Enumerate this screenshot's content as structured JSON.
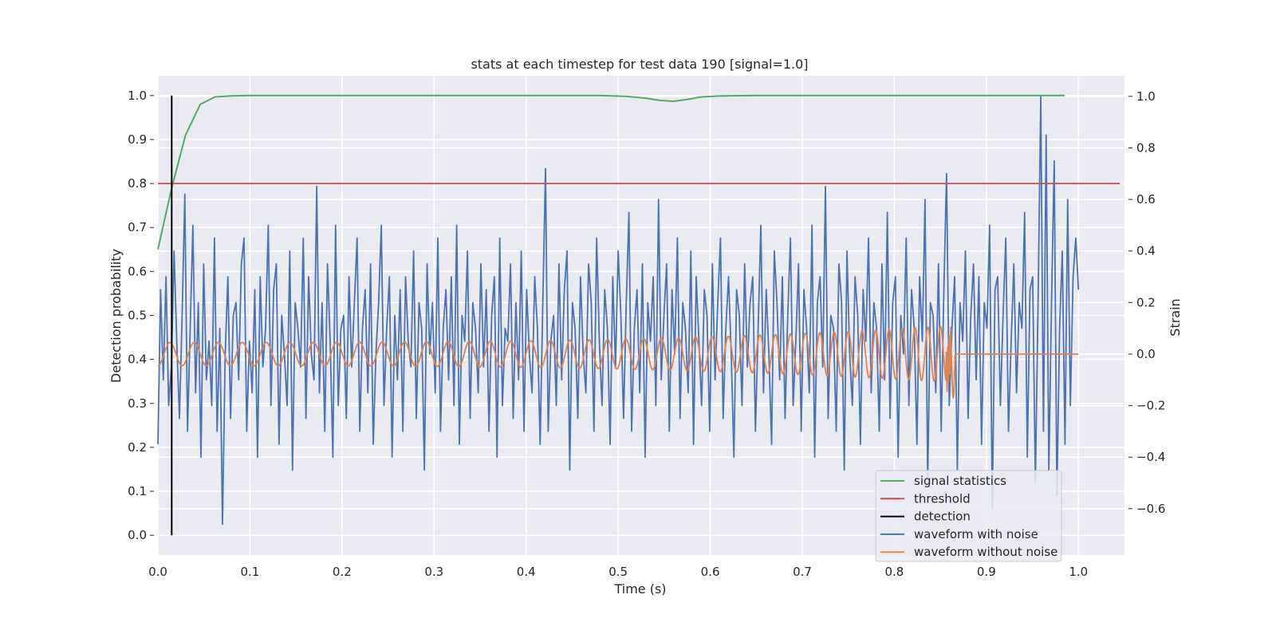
{
  "chart_data": {
    "type": "line",
    "title": "stats at each timestep for test data 190 [signal=1.0]",
    "xlabel": "Time (s)",
    "ylabel_left": "Detection probability",
    "ylabel_right": "Strain",
    "xlim": [
      0.0,
      1.05
    ],
    "ylim_left": [
      -0.045,
      1.045
    ],
    "ylim_right": [
      -0.78,
      1.08
    ],
    "x_ticks": [
      "0.0",
      "0.1",
      "0.2",
      "0.3",
      "0.4",
      "0.5",
      "0.6",
      "0.7",
      "0.8",
      "0.9",
      "1.0"
    ],
    "x_tick_values": [
      0.0,
      0.1,
      0.2,
      0.3,
      0.4,
      0.5,
      0.6,
      0.7,
      0.8,
      0.9,
      1.0
    ],
    "y_left_ticks": [
      "0.0",
      "0.1",
      "0.2",
      "0.3",
      "0.4",
      "0.5",
      "0.6",
      "0.7",
      "0.8",
      "0.9",
      "1.0"
    ],
    "y_left_tick_values": [
      0.0,
      0.1,
      0.2,
      0.3,
      0.4,
      0.5,
      0.6,
      0.7,
      0.8,
      0.9,
      1.0
    ],
    "y_right_ticks": [
      "−0.6",
      "−0.4",
      "−0.2",
      "0.0",
      "0.2",
      "0.4",
      "0.6",
      "0.8",
      "1.0"
    ],
    "y_right_tick_values": [
      -0.6,
      -0.4,
      -0.2,
      0.0,
      0.2,
      0.4,
      0.6,
      0.8,
      1.0
    ],
    "grid": true,
    "legend_position": "lower-right",
    "legend": [
      {
        "label": "signal statistics",
        "color": "#55a868"
      },
      {
        "label": "threshold",
        "color": "#c44e52"
      },
      {
        "label": "detection",
        "color": "#000000"
      },
      {
        "label": "waveform with noise",
        "color": "#4c72b0"
      },
      {
        "label": "waveform without noise",
        "color": "#dd8452"
      }
    ],
    "series": [
      {
        "name": "signal statistics",
        "axis": "left",
        "color": "#55a868",
        "x": [
          0.0,
          0.015,
          0.03,
          0.046,
          0.062,
          0.078,
          0.1,
          0.2,
          0.3,
          0.4,
          0.48,
          0.51,
          0.53,
          0.545,
          0.56,
          0.575,
          0.59,
          0.61,
          0.65,
          0.8,
          0.9,
          0.985
        ],
        "y": [
          0.65,
          0.79,
          0.91,
          0.98,
          0.997,
          0.999,
          1.0,
          1.0,
          1.0,
          1.0,
          1.0,
          0.998,
          0.994,
          0.989,
          0.987,
          0.991,
          0.997,
          0.999,
          1.0,
          1.0,
          1.0,
          1.0
        ]
      },
      {
        "name": "threshold",
        "axis": "left",
        "color": "#c44e52",
        "x": [
          0.0,
          1.045
        ],
        "y": [
          0.8,
          0.8
        ]
      },
      {
        "name": "detection",
        "axis": "left",
        "color": "#000000",
        "x": [
          0.015,
          0.015
        ],
        "y": [
          0.0,
          1.0
        ]
      },
      {
        "name": "waveform with noise",
        "axis": "right",
        "color": "#4c72b0",
        "x_start": 0.0,
        "x_end": 1.0,
        "values": [
          -0.35,
          0.25,
          -0.1,
          0.3,
          -0.2,
          -0.05,
          0.4,
          0.05,
          -0.25,
          0.15,
          0.62,
          -0.3,
          0.1,
          0.5,
          -0.15,
          0.2,
          -0.4,
          0.35,
          -0.1,
          0.05,
          -0.2,
          0.45,
          -0.3,
          0.1,
          -0.66,
          0.0,
          0.3,
          -0.25,
          0.15,
          0.2,
          -0.1,
          0.35,
          0.45,
          -0.3,
          0.05,
          -0.15,
          0.25,
          -0.4,
          0.3,
          -0.05,
          0.1,
          0.5,
          -0.2,
          0.25,
          0.35,
          -0.35,
          0.15,
          0.0,
          -0.2,
          0.4,
          -0.45,
          0.2,
          0.1,
          -0.05,
          0.45,
          -0.25,
          0.3,
          0.0,
          -0.1,
          0.65,
          -0.15,
          0.2,
          -0.3,
          0.35,
          0.05,
          -0.4,
          0.5,
          -0.2,
          0.1,
          0.15,
          -0.25,
          0.3,
          -0.05,
          0.2,
          0.45,
          -0.3,
          0.1,
          0.25,
          -0.15,
          0.35,
          -0.35,
          0.0,
          0.2,
          0.5,
          -0.2,
          0.1,
          0.3,
          -0.4,
          0.15,
          -0.1,
          0.25,
          -0.3,
          0.3,
          0.05,
          -0.05,
          0.4,
          -0.25,
          0.2,
          0.1,
          -0.45,
          0.35,
          0.0,
          0.2,
          -0.15,
          0.45,
          -0.3,
          0.1,
          0.25,
          -0.1,
          0.3,
          -0.2,
          0.5,
          -0.35,
          0.15,
          0.05,
          0.4,
          -0.25,
          0.2,
          0.1,
          -0.15,
          0.35,
          -0.05,
          0.25,
          -0.3,
          0.15,
          0.3,
          -0.4,
          0.45,
          -0.2,
          0.1,
          0.05,
          0.35,
          -0.25,
          0.2,
          -0.1,
          0.4,
          -0.3,
          0.25,
          0.0,
          -0.15,
          0.3,
          0.1,
          -0.35,
          0.2,
          0.72,
          -0.3,
          0.05,
          0.15,
          -0.2,
          0.35,
          -0.1,
          0.25,
          0.4,
          -0.45,
          0.2,
          0.1,
          -0.25,
          0.3,
          0.0,
          -0.15,
          0.35,
          0.2,
          -0.3,
          0.45,
          0.05,
          -0.2,
          0.25,
          0.1,
          -0.35,
          0.3,
          -0.05,
          0.4,
          0.15,
          -0.25,
          0.2,
          0.55,
          -0.3,
          0.1,
          0.25,
          -0.15,
          0.35,
          -0.4,
          0.2,
          0.05,
          0.3,
          -0.2,
          0.6,
          -0.1,
          0.15,
          0.35,
          -0.3,
          0.25,
          0.0,
          0.45,
          -0.25,
          0.2,
          0.1,
          -0.15,
          0.4,
          -0.35,
          0.3,
          0.05,
          -0.2,
          0.25,
          0.15,
          -0.3,
          0.35,
          -0.1,
          0.2,
          0.45,
          -0.25,
          0.1,
          0.3,
          0.0,
          -0.4,
          0.25,
          0.15,
          -0.2,
          0.35,
          -0.05,
          0.2,
          0.3,
          -0.3,
          0.1,
          0.5,
          -0.15,
          0.25,
          0.0,
          -0.35,
          0.4,
          0.2,
          -0.1,
          0.3,
          -0.25,
          0.15,
          0.45,
          -0.2,
          0.05,
          0.35,
          -0.3,
          0.25,
          0.1,
          -0.15,
          0.5,
          -0.4,
          0.2,
          0.3,
          -0.05,
          0.65,
          -0.25,
          0.15,
          0.1,
          -0.3,
          0.35,
          0.2,
          -0.45,
          0.4,
          0.0,
          -0.2,
          0.3,
          0.15,
          -0.35,
          0.25,
          0.05,
          0.45,
          -0.15,
          0.2,
          0.1,
          -0.3,
          0.35,
          -0.1,
          0.55,
          -0.25,
          0.2,
          0.3,
          -0.4,
          0.15,
          0.0,
          0.45,
          -0.2,
          0.25,
          0.1,
          -0.35,
          0.3,
          0.05,
          0.6,
          -0.5,
          0.2,
          0.15,
          -0.15,
          0.35,
          -0.3,
          0.25,
          0.7,
          -0.2,
          0.1,
          0.3,
          -0.45,
          0.2,
          0.05,
          0.4,
          -0.25,
          0.15,
          0.35,
          -0.1,
          0.3,
          -0.35,
          0.2,
          0.1,
          0.5,
          -0.6,
          0.25,
          0.3,
          -0.2,
          0.15,
          0.45,
          -0.3,
          0.05,
          0.35,
          -0.15,
          0.2,
          0.1,
          0.55,
          -0.4,
          0.25,
          0.3,
          -0.5,
          0.2,
          1.0,
          -0.3,
          0.85,
          -0.45,
          0.2,
          0.75,
          -0.55,
          0.1,
          0.4,
          -0.35,
          0.6,
          -0.2,
          0.3,
          0.45,
          0.25
        ]
      },
      {
        "name": "waveform without noise",
        "axis": "right",
        "color": "#dd8452",
        "x_start": 0.0,
        "x_end": 1.0,
        "chirp": {
          "f0_hz": 38,
          "f1_hz": 75,
          "a0": 0.045,
          "a1": 0.11,
          "merger_time_s": 0.862,
          "ring_amp": 0.17,
          "initial_offset": -0.045
        }
      }
    ]
  }
}
